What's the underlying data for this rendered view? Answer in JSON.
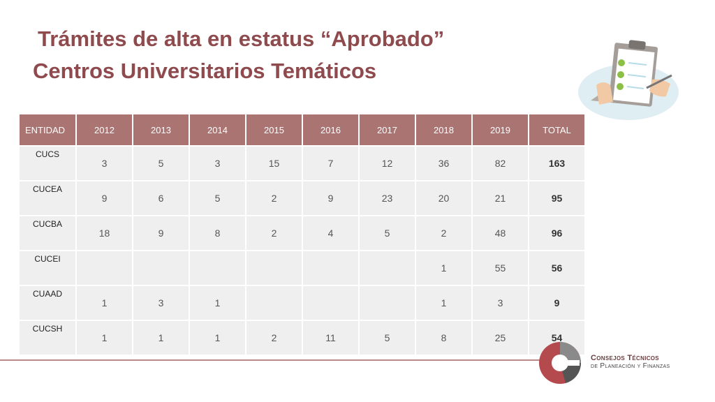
{
  "title": {
    "line1": "Trámites de alta en estatus “Aprobado”",
    "line2": "Centros Universitarios Temáticos"
  },
  "table": {
    "headers": [
      "ENTIDAD",
      "2012",
      "2013",
      "2014",
      "2015",
      "2016",
      "2017",
      "2018",
      "2019",
      "TOTAL"
    ],
    "rows": [
      {
        "entidad": "CUCS",
        "values": [
          "3",
          "5",
          "3",
          "15",
          "7",
          "12",
          "36",
          "82"
        ],
        "total": "163"
      },
      {
        "entidad": "CUCEA",
        "values": [
          "9",
          "6",
          "5",
          "2",
          "9",
          "23",
          "20",
          "21"
        ],
        "total": "95"
      },
      {
        "entidad": "CUCBA",
        "values": [
          "18",
          "9",
          "8",
          "2",
          "4",
          "5",
          "2",
          "48"
        ],
        "total": "96"
      },
      {
        "entidad": "CUCEI",
        "values": [
          "",
          "",
          "",
          "",
          "",
          "",
          "1",
          "55"
        ],
        "total": "56"
      },
      {
        "entidad": "CUAAD",
        "values": [
          "1",
          "3",
          "1",
          "",
          "",
          "",
          "1",
          "3"
        ],
        "total": "9"
      },
      {
        "entidad": "CUCSH",
        "values": [
          "1",
          "1",
          "1",
          "2",
          "11",
          "5",
          "8",
          "25"
        ],
        "total": "54"
      }
    ]
  },
  "footer": {
    "logo_line1": "Consejos Técnicos",
    "logo_line2": "de Planeación y Finanzas"
  },
  "colors": {
    "title": "#8e4a4d",
    "header_bg": "#a97472",
    "cell_bg": "#efefef",
    "footer_line": "#b98a88"
  },
  "icons": [
    "clipboard-checklist-illustration",
    "consejos-tecnicos-logo"
  ]
}
